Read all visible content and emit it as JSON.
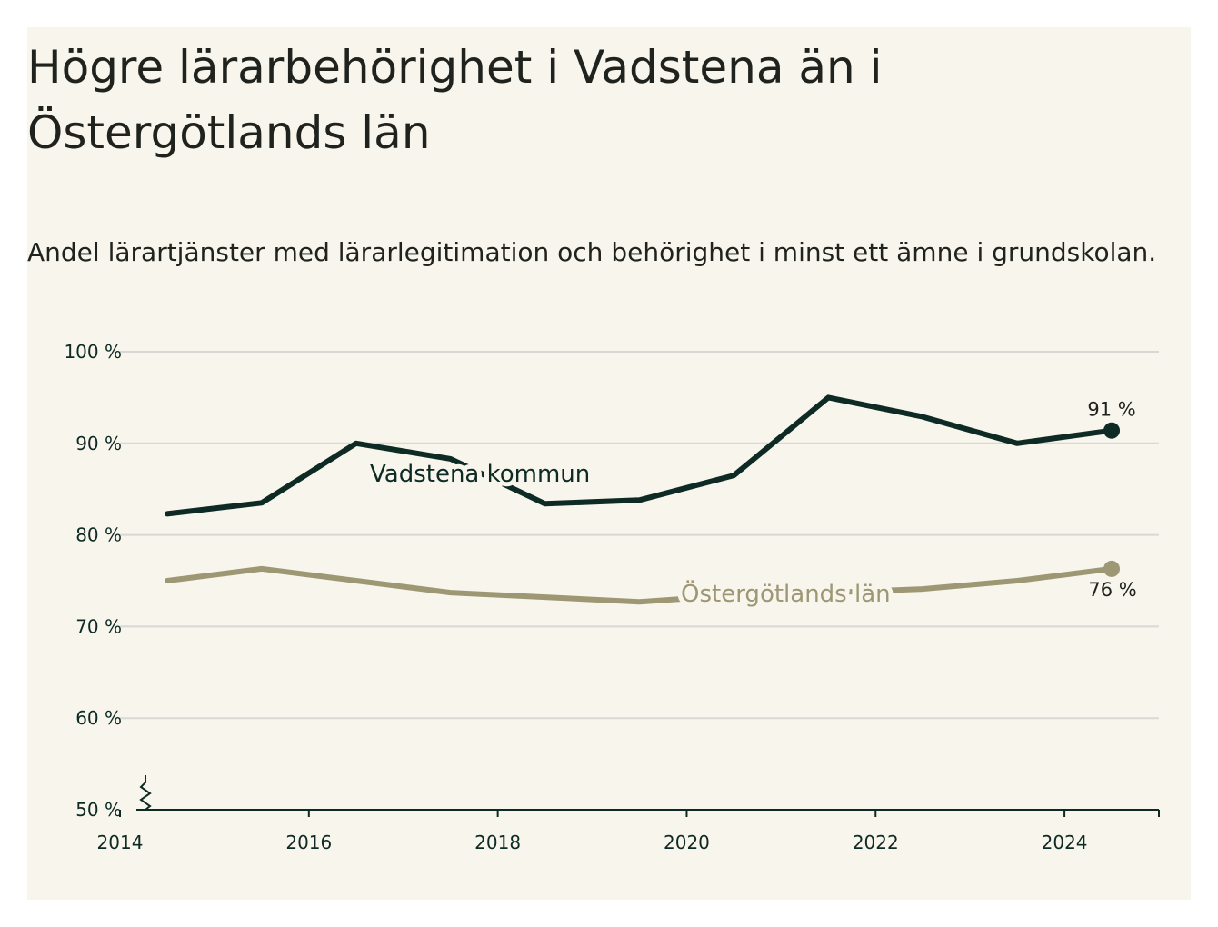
{
  "title": "Högre lärarbehörighet i Vadstena än i Östergötlands län",
  "subtitle": "Andel lärartjänster med lärarlegitimation och behörighet i minst ett ämne i grundskolan.",
  "colors": {
    "background": "#f7f5ec",
    "vadstena": "#0e2a24",
    "lan": "#9d9774",
    "grid": "#d9d8d4"
  },
  "chart_data": {
    "type": "line",
    "title": "Högre lärarbehörighet i Vadstena än i Östergötlands län",
    "subtitle": "Andel lärartjänster med lärarlegitimation och behörighet i minst ett ämne i grundskolan.",
    "xlabel": "",
    "ylabel": "",
    "x": [
      2014.5,
      2015.5,
      2016.5,
      2017.5,
      2018.5,
      2019.5,
      2020.5,
      2021.5,
      2022.5,
      2023.5,
      2024.5
    ],
    "xlim": [
      2014,
      2025
    ],
    "xticks": [
      "2014",
      "2016",
      "2018",
      "2020",
      "2022",
      "2024"
    ],
    "ylim": [
      50,
      100
    ],
    "yticks": [
      "50 %",
      "60 %",
      "70 %",
      "80 %",
      "90 %",
      "100 %"
    ],
    "grid": true,
    "axis_break": true,
    "series": [
      {
        "name": "Vadstena kommun",
        "values": [
          82.3,
          83.5,
          90.0,
          88.3,
          83.4,
          83.8,
          86.5,
          95.0,
          92.9,
          90.0,
          91.4
        ],
        "end_label": "91 %"
      },
      {
        "name": "Östergötlands län",
        "values": [
          75.0,
          76.3,
          75.0,
          73.7,
          73.2,
          72.7,
          73.4,
          73.7,
          74.1,
          75.0,
          76.3
        ],
        "end_label": "76 %"
      }
    ]
  }
}
